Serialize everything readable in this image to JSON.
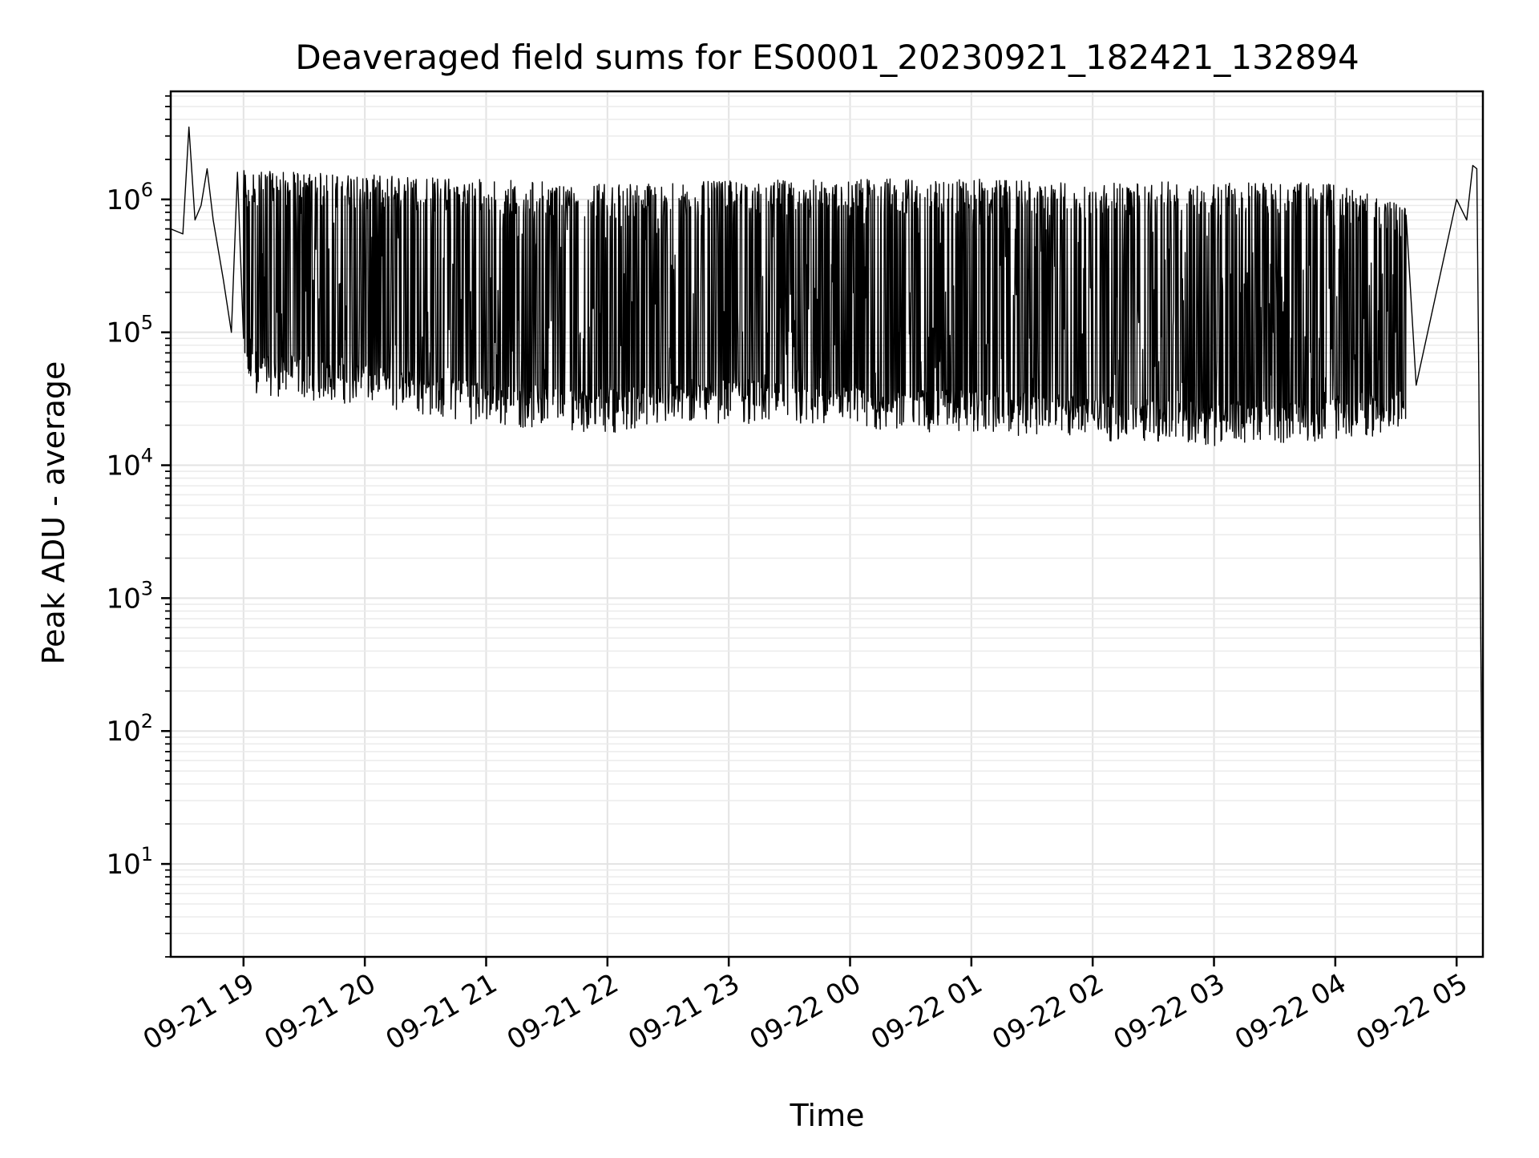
{
  "chart_data": {
    "type": "line",
    "title": "Deaveraged field sums for ES0001_20230921_182421_132894",
    "xlabel": "Time",
    "ylabel": "Peak ADU - average",
    "yscale": "log",
    "xlim": [
      "2023-09-21 18:24",
      "2023-09-22 05:13"
    ],
    "ylim": [
      2,
      6500000.0
    ],
    "grid": true,
    "x_tick_labels": [
      "09-21 19",
      "09-21 20",
      "09-21 21",
      "09-21 22",
      "09-21 23",
      "09-22 00",
      "09-22 01",
      "09-22 02",
      "09-22 03",
      "09-22 04",
      "09-22 05"
    ],
    "y_tick_labels": [
      {
        "base": "10",
        "exp": "1",
        "value": 10
      },
      {
        "base": "10",
        "exp": "2",
        "value": 100
      },
      {
        "base": "10",
        "exp": "3",
        "value": 1000
      },
      {
        "base": "10",
        "exp": "4",
        "value": 10000
      },
      {
        "base": "10",
        "exp": "5",
        "value": 100000
      },
      {
        "base": "10",
        "exp": "6",
        "value": 1000000
      }
    ],
    "series": [
      {
        "color": "#000000",
        "x": [
          "2023-09-21 18:24",
          "2023-09-21 18:30",
          "2023-09-21 18:33",
          "2023-09-21 18:36",
          "2023-09-21 18:39",
          "2023-09-21 18:42",
          "2023-09-21 18:45",
          "2023-09-21 18:50",
          "2023-09-21 18:54",
          "2023-09-21 18:57",
          "2023-09-21 19:00",
          "2023-09-21 19:10",
          "2023-09-21 19:20",
          "2023-09-21 19:40",
          "2023-09-21 20:00",
          "2023-09-21 20:30",
          "2023-09-21 21:00",
          "2023-09-21 21:30",
          "2023-09-21 22:00",
          "2023-09-21 22:15",
          "2023-09-21 22:30",
          "2023-09-21 22:45",
          "2023-09-21 23:00",
          "2023-09-21 23:10",
          "2023-09-21 23:20",
          "2023-09-21 23:40",
          "2023-09-22 00:00",
          "2023-09-22 00:30",
          "2023-09-22 01:00",
          "2023-09-22 01:30",
          "2023-09-22 01:45",
          "2023-09-22 02:00",
          "2023-09-22 02:30",
          "2023-09-22 03:00",
          "2023-09-22 03:30",
          "2023-09-22 04:00",
          "2023-09-22 04:20",
          "2023-09-22 04:30",
          "2023-09-22 04:40",
          "2023-09-22 04:50",
          "2023-09-22 05:00",
          "2023-09-22 05:05",
          "2023-09-22 05:08",
          "2023-09-22 05:10",
          "2023-09-22 05:11",
          "2023-09-22 05:13"
        ],
        "y": [
          600000,
          550000,
          3500000,
          700000,
          900000,
          1700000,
          700000,
          250000,
          100000,
          1600000,
          90000,
          70000,
          55000,
          50000,
          45000,
          40000,
          32000,
          30000,
          30000,
          900000,
          300000,
          1000000,
          400000,
          1200000,
          40000,
          30000,
          30000,
          30000,
          30000,
          30000,
          1100000,
          30000,
          28000,
          25000,
          1100000,
          28000,
          25000,
          30000,
          40000,
          200000,
          1000000,
          700000,
          1800000,
          1700000,
          40000,
          4
        ]
      }
    ],
    "envelope": {
      "x": [
        "2023-09-21 19:00",
        "2023-09-21 20:00",
        "2023-09-21 21:00",
        "2023-09-21 22:00",
        "2023-09-21 23:00",
        "2023-09-22 00:00",
        "2023-09-22 01:00",
        "2023-09-22 02:00",
        "2023-09-22 03:00",
        "2023-09-22 04:00",
        "2023-09-22 04:35"
      ],
      "y_low": [
        50000,
        40000,
        28000,
        25000,
        30000,
        25000,
        25000,
        22000,
        20000,
        22000,
        25000
      ],
      "y_high": [
        1500000,
        1400000,
        1300000,
        1200000,
        1250000,
        1300000,
        1300000,
        1200000,
        1250000,
        1200000,
        800000
      ]
    }
  }
}
